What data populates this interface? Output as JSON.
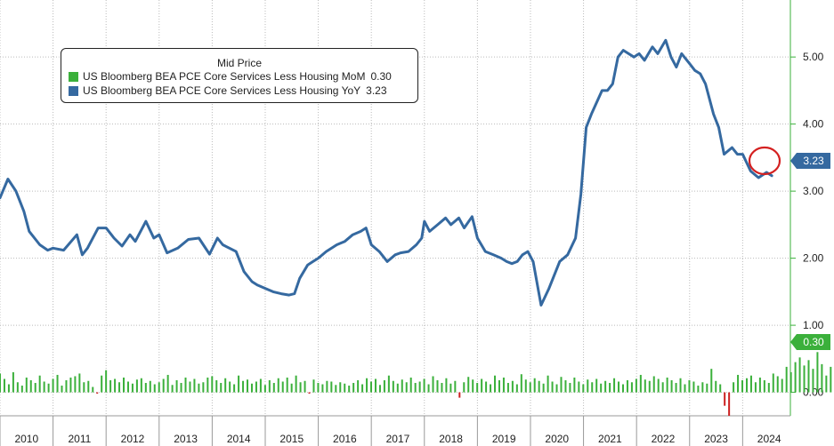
{
  "chart_data": {
    "type": "line",
    "title": "",
    "legend": {
      "title": "Mid Price",
      "placement": "top-left",
      "entries": [
        {
          "name": "US Bloomberg BEA PCE Core Services Less Housing MoM",
          "value": "0.30",
          "color": "#3bb03b"
        },
        {
          "name": "US Bloomberg BEA PCE Core Services Less Housing YoY",
          "value": "3.23",
          "color": "#3569a0"
        }
      ]
    },
    "xlim": [
      2010,
      2024.9
    ],
    "x_ticks": [
      "2010",
      "2011",
      "2012",
      "2013",
      "2014",
      "2015",
      "2016",
      "2017",
      "2018",
      "2019",
      "2020",
      "2021",
      "2022",
      "2023",
      "2024"
    ],
    "ylim": [
      -0.35,
      5.85
    ],
    "y_ticks": [
      "0.00",
      "1.00",
      "2.00",
      "3.00",
      "4.00",
      "5.00"
    ],
    "grid": true,
    "axis_position": "right",
    "series": [
      {
        "name": "US Bloomberg BEA PCE Core Services Less Housing YoY",
        "type": "line",
        "color": "#3569a0",
        "last_value": "3.23",
        "points": [
          [
            2010.0,
            2.9
          ],
          [
            2010.15,
            3.18
          ],
          [
            2010.3,
            3.0
          ],
          [
            2010.45,
            2.7
          ],
          [
            2010.55,
            2.4
          ],
          [
            2010.75,
            2.2
          ],
          [
            2010.9,
            2.12
          ],
          [
            2011.0,
            2.15
          ],
          [
            2011.2,
            2.12
          ],
          [
            2011.45,
            2.35
          ],
          [
            2011.55,
            2.05
          ],
          [
            2011.65,
            2.15
          ],
          [
            2011.85,
            2.45
          ],
          [
            2012.0,
            2.45
          ],
          [
            2012.15,
            2.3
          ],
          [
            2012.3,
            2.18
          ],
          [
            2012.45,
            2.35
          ],
          [
            2012.55,
            2.25
          ],
          [
            2012.75,
            2.55
          ],
          [
            2012.9,
            2.3
          ],
          [
            2013.0,
            2.35
          ],
          [
            2013.15,
            2.08
          ],
          [
            2013.35,
            2.15
          ],
          [
            2013.55,
            2.28
          ],
          [
            2013.75,
            2.3
          ],
          [
            2013.85,
            2.18
          ],
          [
            2013.95,
            2.06
          ],
          [
            2014.1,
            2.3
          ],
          [
            2014.2,
            2.2
          ],
          [
            2014.45,
            2.1
          ],
          [
            2014.6,
            1.8
          ],
          [
            2014.75,
            1.65
          ],
          [
            2014.85,
            1.6
          ],
          [
            2015.0,
            1.55
          ],
          [
            2015.15,
            1.5
          ],
          [
            2015.3,
            1.47
          ],
          [
            2015.45,
            1.45
          ],
          [
            2015.55,
            1.47
          ],
          [
            2015.65,
            1.7
          ],
          [
            2015.8,
            1.9
          ],
          [
            2015.9,
            1.95
          ],
          [
            2016.0,
            2.0
          ],
          [
            2016.15,
            2.1
          ],
          [
            2016.35,
            2.2
          ],
          [
            2016.5,
            2.25
          ],
          [
            2016.65,
            2.35
          ],
          [
            2016.8,
            2.4
          ],
          [
            2016.9,
            2.45
          ],
          [
            2017.0,
            2.2
          ],
          [
            2017.15,
            2.1
          ],
          [
            2017.3,
            1.95
          ],
          [
            2017.45,
            2.05
          ],
          [
            2017.55,
            2.08
          ],
          [
            2017.7,
            2.1
          ],
          [
            2017.85,
            2.2
          ],
          [
            2017.95,
            2.3
          ],
          [
            2018.0,
            2.55
          ],
          [
            2018.1,
            2.4
          ],
          [
            2018.25,
            2.5
          ],
          [
            2018.4,
            2.6
          ],
          [
            2018.5,
            2.5
          ],
          [
            2018.65,
            2.6
          ],
          [
            2018.75,
            2.45
          ],
          [
            2018.9,
            2.62
          ],
          [
            2019.0,
            2.3
          ],
          [
            2019.15,
            2.1
          ],
          [
            2019.3,
            2.05
          ],
          [
            2019.45,
            2.0
          ],
          [
            2019.55,
            1.95
          ],
          [
            2019.65,
            1.92
          ],
          [
            2019.75,
            1.95
          ],
          [
            2019.85,
            2.05
          ],
          [
            2019.95,
            2.1
          ],
          [
            2020.05,
            1.95
          ],
          [
            2020.2,
            1.3
          ],
          [
            2020.35,
            1.55
          ],
          [
            2020.55,
            1.95
          ],
          [
            2020.7,
            2.05
          ],
          [
            2020.85,
            2.3
          ],
          [
            2020.95,
            2.95
          ],
          [
            2021.05,
            3.95
          ],
          [
            2021.15,
            4.15
          ],
          [
            2021.35,
            4.5
          ],
          [
            2021.45,
            4.5
          ],
          [
            2021.55,
            4.6
          ],
          [
            2021.65,
            5.0
          ],
          [
            2021.75,
            5.1
          ],
          [
            2021.85,
            5.05
          ],
          [
            2021.95,
            5.0
          ],
          [
            2022.05,
            5.05
          ],
          [
            2022.15,
            4.95
          ],
          [
            2022.3,
            5.15
          ],
          [
            2022.4,
            5.05
          ],
          [
            2022.55,
            5.25
          ],
          [
            2022.65,
            5.0
          ],
          [
            2022.75,
            4.85
          ],
          [
            2022.85,
            5.05
          ],
          [
            2023.0,
            4.9
          ],
          [
            2023.1,
            4.8
          ],
          [
            2023.2,
            4.75
          ],
          [
            2023.3,
            4.6
          ],
          [
            2023.45,
            4.15
          ],
          [
            2023.55,
            3.95
          ],
          [
            2023.65,
            3.55
          ],
          [
            2023.8,
            3.65
          ],
          [
            2023.9,
            3.55
          ],
          [
            2024.0,
            3.55
          ],
          [
            2024.15,
            3.3
          ],
          [
            2024.3,
            3.2
          ],
          [
            2024.45,
            3.28
          ],
          [
            2024.55,
            3.23
          ]
        ]
      },
      {
        "name": "US Bloomberg BEA PCE Core Services Less Housing MoM",
        "type": "bar",
        "color": "#3bb03b",
        "negative_color": "#cc2020",
        "last_value": "0.30",
        "start": 2010.0,
        "step": 0.0833,
        "values": [
          0.28,
          0.2,
          0.12,
          0.3,
          0.15,
          0.1,
          0.22,
          0.18,
          0.14,
          0.25,
          0.16,
          0.13,
          0.2,
          0.26,
          0.1,
          0.18,
          0.22,
          0.24,
          0.28,
          0.15,
          0.17,
          0.08,
          -0.02,
          0.25,
          0.33,
          0.18,
          0.2,
          0.15,
          0.22,
          0.16,
          0.13,
          0.19,
          0.21,
          0.14,
          0.17,
          0.12,
          0.15,
          0.2,
          0.26,
          0.11,
          0.18,
          0.14,
          0.22,
          0.16,
          0.2,
          0.13,
          0.15,
          0.22,
          0.24,
          0.18,
          0.14,
          0.21,
          0.16,
          0.12,
          0.25,
          0.17,
          0.19,
          0.13,
          0.16,
          0.2,
          0.11,
          0.18,
          0.14,
          0.21,
          0.16,
          0.22,
          0.13,
          0.25,
          0.15,
          0.17,
          -0.02,
          0.19,
          0.14,
          0.12,
          0.17,
          0.16,
          0.11,
          0.15,
          0.13,
          0.1,
          0.14,
          0.18,
          0.12,
          0.21,
          0.16,
          0.2,
          0.11,
          0.18,
          0.25,
          0.17,
          0.13,
          0.19,
          0.15,
          0.22,
          0.14,
          0.16,
          0.2,
          0.12,
          0.24,
          0.18,
          0.14,
          0.21,
          0.13,
          0.17,
          -0.08,
          0.15,
          0.23,
          0.19,
          0.14,
          0.2,
          0.16,
          0.12,
          0.25,
          0.18,
          0.22,
          0.14,
          0.17,
          0.12,
          0.27,
          0.19,
          0.15,
          0.21,
          0.17,
          0.13,
          0.25,
          0.16,
          0.12,
          0.23,
          0.18,
          0.14,
          0.22,
          0.16,
          0.12,
          0.19,
          0.15,
          0.2,
          0.13,
          0.17,
          0.14,
          0.21,
          0.16,
          0.12,
          0.18,
          0.15,
          0.2,
          0.26,
          0.19,
          0.17,
          0.24,
          0.2,
          0.15,
          0.22,
          0.18,
          0.14,
          0.21,
          0.12,
          0.18,
          0.16,
          0.1,
          0.15,
          0.13,
          0.35,
          0.17,
          0.12,
          -0.2,
          -0.35,
          0.15,
          0.26,
          0.18,
          0.21,
          0.25,
          0.15,
          0.22,
          0.18,
          0.14,
          0.28,
          0.24,
          0.2,
          0.38,
          0.3,
          0.45,
          0.52,
          0.4,
          0.48,
          0.35,
          0.6,
          0.42,
          0.25,
          0.38,
          0.2,
          0.55,
          0.25,
          0.35,
          0.48,
          0.6,
          0.3,
          0.2,
          0.55,
          0.45,
          0.35,
          0.52,
          0.42,
          0.3,
          0.45,
          0.4,
          0.38,
          0.42,
          0.35,
          0.3,
          0.4,
          0.22,
          0.38,
          0.15,
          0.4,
          0.2,
          0.35,
          0.25,
          0.3,
          0.45,
          0.18,
          0.12,
          0.35,
          0.22,
          0.75,
          0.4,
          0.1,
          0.25,
          0.15,
          0.4,
          0.2,
          0.3,
          0.18,
          0.25,
          0.2,
          0.3
        ]
      }
    ]
  }
}
